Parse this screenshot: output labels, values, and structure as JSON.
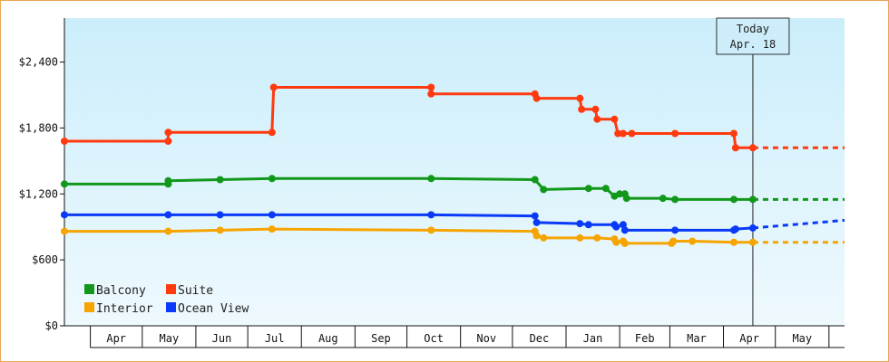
{
  "chart_data": {
    "type": "line",
    "step": true,
    "ylim": [
      0,
      2800
    ],
    "yticks": [
      0,
      600,
      1200,
      1800,
      2400
    ],
    "ytick_labels": [
      "$0",
      "$600",
      "$1,200",
      "$1,800",
      "$2,400"
    ],
    "xlim": [
      "2023-03-17",
      "2024-06-10"
    ],
    "month_labels": [
      {
        "label": "Apr",
        "start": "2023-04-01"
      },
      {
        "label": "May",
        "start": "2023-05-01"
      },
      {
        "label": "Jun",
        "start": "2023-06-01"
      },
      {
        "label": "Jul",
        "start": "2023-07-01"
      },
      {
        "label": "Aug",
        "start": "2023-08-01"
      },
      {
        "label": "Sep",
        "start": "2023-09-01"
      },
      {
        "label": "Oct",
        "start": "2023-10-01"
      },
      {
        "label": "Nov",
        "start": "2023-11-01"
      },
      {
        "label": "Dec",
        "start": "2023-12-01"
      },
      {
        "label": "Jan",
        "start": "2024-01-01"
      },
      {
        "label": "Feb",
        "start": "2024-02-01"
      },
      {
        "label": "Mar",
        "start": "2024-03-01"
      },
      {
        "label": "Apr",
        "start": "2024-04-01"
      },
      {
        "label": "May",
        "start": "2024-05-01"
      },
      {
        "label": "",
        "start": "2024-06-01"
      }
    ],
    "today": {
      "line1": "Today",
      "line2": "Apr. 18",
      "date": "2024-04-18"
    },
    "legend": {
      "placement": "bottom-left"
    },
    "series": [
      {
        "name": "Suite",
        "color": "#ff3a0f",
        "points": [
          [
            "2023-03-17",
            1680
          ],
          [
            "2023-05-16",
            1680
          ],
          [
            "2023-05-16",
            1760
          ],
          [
            "2023-07-15",
            1760
          ],
          [
            "2023-07-16",
            2170
          ],
          [
            "2023-10-15",
            2170
          ],
          [
            "2023-10-15",
            2110
          ],
          [
            "2023-12-14",
            2110
          ],
          [
            "2023-12-15",
            2070
          ],
          [
            "2024-01-09",
            2070
          ],
          [
            "2024-01-10",
            1970
          ],
          [
            "2024-01-18",
            1970
          ],
          [
            "2024-01-19",
            1880
          ],
          [
            "2024-01-29",
            1880
          ],
          [
            "2024-01-31",
            1750
          ],
          [
            "2024-02-03",
            1750
          ],
          [
            "2024-02-08",
            1750
          ],
          [
            "2024-03-04",
            1750
          ],
          [
            "2024-04-07",
            1750
          ],
          [
            "2024-04-08",
            1620
          ],
          [
            "2024-04-18",
            1620
          ]
        ],
        "projection": [
          [
            "2024-04-18",
            1620
          ],
          [
            "2024-06-10",
            1620
          ]
        ]
      },
      {
        "name": "Balcony",
        "color": "#11981b",
        "points": [
          [
            "2023-03-17",
            1290
          ],
          [
            "2023-05-16",
            1290
          ],
          [
            "2023-05-16",
            1320
          ],
          [
            "2023-06-15",
            1330
          ],
          [
            "2023-07-15",
            1340
          ],
          [
            "2023-10-15",
            1340
          ],
          [
            "2023-12-14",
            1330
          ],
          [
            "2023-12-19",
            1240
          ],
          [
            "2024-01-14",
            1250
          ],
          [
            "2024-01-24",
            1250
          ],
          [
            "2024-01-29",
            1180
          ],
          [
            "2024-02-01",
            1200
          ],
          [
            "2024-02-04",
            1200
          ],
          [
            "2024-02-05",
            1160
          ],
          [
            "2024-02-26",
            1160
          ],
          [
            "2024-03-04",
            1150
          ],
          [
            "2024-04-07",
            1150
          ],
          [
            "2024-04-18",
            1150
          ]
        ],
        "projection": [
          [
            "2024-04-18",
            1150
          ],
          [
            "2024-06-10",
            1150
          ]
        ]
      },
      {
        "name": "Ocean View",
        "color": "#0a3af7",
        "points": [
          [
            "2023-03-17",
            1010
          ],
          [
            "2023-05-16",
            1010
          ],
          [
            "2023-06-15",
            1010
          ],
          [
            "2023-07-15",
            1010
          ],
          [
            "2023-10-15",
            1010
          ],
          [
            "2023-12-14",
            1000
          ],
          [
            "2023-12-15",
            940
          ],
          [
            "2024-01-09",
            930
          ],
          [
            "2024-01-14",
            920
          ],
          [
            "2024-01-29",
            920
          ],
          [
            "2024-01-30",
            900
          ],
          [
            "2024-02-03",
            920
          ],
          [
            "2024-02-04",
            870
          ],
          [
            "2024-03-04",
            870
          ],
          [
            "2024-04-07",
            870
          ],
          [
            "2024-04-08",
            880
          ],
          [
            "2024-04-18",
            890
          ]
        ],
        "projection": [
          [
            "2024-04-18",
            890
          ],
          [
            "2024-06-10",
            960
          ]
        ]
      },
      {
        "name": "Interior",
        "color": "#f6a400",
        "points": [
          [
            "2023-03-17",
            860
          ],
          [
            "2023-05-16",
            860
          ],
          [
            "2023-06-15",
            870
          ],
          [
            "2023-07-15",
            880
          ],
          [
            "2023-10-15",
            870
          ],
          [
            "2023-12-14",
            860
          ],
          [
            "2023-12-15",
            820
          ],
          [
            "2023-12-19",
            800
          ],
          [
            "2024-01-09",
            800
          ],
          [
            "2024-01-19",
            800
          ],
          [
            "2024-01-29",
            790
          ],
          [
            "2024-01-30",
            760
          ],
          [
            "2024-02-03",
            770
          ],
          [
            "2024-02-04",
            750
          ],
          [
            "2024-03-02",
            750
          ],
          [
            "2024-03-03",
            770
          ],
          [
            "2024-03-14",
            770
          ],
          [
            "2024-04-07",
            760
          ],
          [
            "2024-04-18",
            760
          ]
        ],
        "projection": [
          [
            "2024-04-18",
            760
          ],
          [
            "2024-06-10",
            760
          ]
        ]
      }
    ],
    "legend_order": [
      "Balcony",
      "Suite",
      "Interior",
      "Ocean View"
    ]
  }
}
